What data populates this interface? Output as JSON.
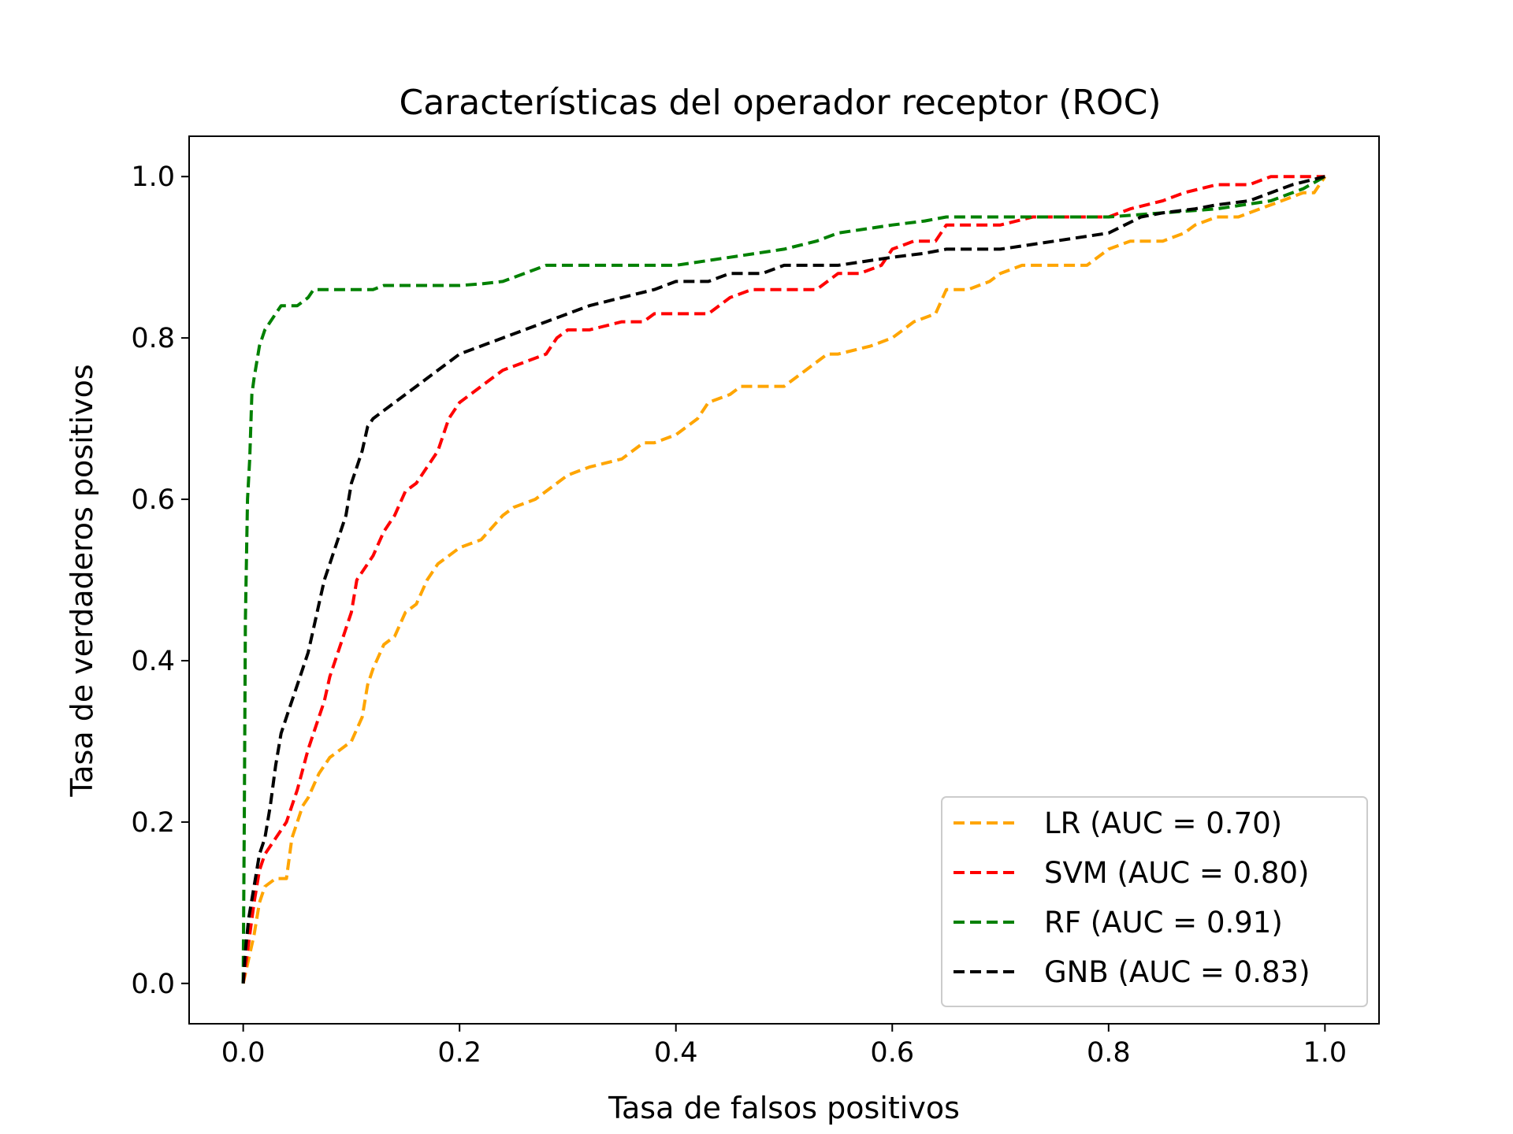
{
  "chart_data": {
    "type": "line",
    "title": "Características del operador receptor (ROC)",
    "xlabel": "Tasa de falsos positivos",
    "ylabel": "Tasa de verdaderos positivos",
    "xlim": [
      -0.05,
      1.05
    ],
    "ylim": [
      -0.05,
      1.05
    ],
    "xticks": [
      0.0,
      0.2,
      0.4,
      0.6,
      0.8,
      1.0
    ],
    "yticks": [
      0.0,
      0.2,
      0.4,
      0.6,
      0.8,
      1.0
    ],
    "xtick_labels": [
      "0.0",
      "0.2",
      "0.4",
      "0.6",
      "0.8",
      "1.0"
    ],
    "ytick_labels": [
      "0.0",
      "0.2",
      "0.4",
      "0.6",
      "0.8",
      "1.0"
    ],
    "grid": false,
    "legend_position": "lower-right",
    "line_style": "dashed",
    "series": [
      {
        "name": "LR (AUC = 0.70)",
        "color": "#ffa500",
        "x": [
          0.0,
          0.005,
          0.01,
          0.015,
          0.02,
          0.03,
          0.04,
          0.045,
          0.05,
          0.055,
          0.06,
          0.07,
          0.08,
          0.09,
          0.1,
          0.11,
          0.115,
          0.12,
          0.13,
          0.14,
          0.15,
          0.16,
          0.17,
          0.18,
          0.19,
          0.2,
          0.22,
          0.24,
          0.25,
          0.27,
          0.29,
          0.3,
          0.32,
          0.35,
          0.37,
          0.38,
          0.4,
          0.42,
          0.43,
          0.45,
          0.46,
          0.48,
          0.5,
          0.52,
          0.54,
          0.55,
          0.58,
          0.6,
          0.62,
          0.64,
          0.65,
          0.67,
          0.69,
          0.7,
          0.72,
          0.75,
          0.78,
          0.8,
          0.82,
          0.85,
          0.87,
          0.88,
          0.9,
          0.92,
          0.94,
          0.96,
          0.98,
          0.99,
          1.0
        ],
        "y": [
          0.0,
          0.03,
          0.06,
          0.1,
          0.12,
          0.13,
          0.13,
          0.18,
          0.2,
          0.22,
          0.23,
          0.26,
          0.28,
          0.29,
          0.3,
          0.33,
          0.37,
          0.39,
          0.42,
          0.43,
          0.46,
          0.47,
          0.5,
          0.52,
          0.53,
          0.54,
          0.55,
          0.58,
          0.59,
          0.6,
          0.62,
          0.63,
          0.64,
          0.65,
          0.67,
          0.67,
          0.68,
          0.7,
          0.72,
          0.73,
          0.74,
          0.74,
          0.74,
          0.76,
          0.78,
          0.78,
          0.79,
          0.8,
          0.82,
          0.83,
          0.86,
          0.86,
          0.87,
          0.88,
          0.89,
          0.89,
          0.89,
          0.91,
          0.92,
          0.92,
          0.93,
          0.94,
          0.95,
          0.95,
          0.96,
          0.97,
          0.98,
          0.98,
          1.0
        ]
      },
      {
        "name": "SVM (AUC = 0.80)",
        "color": "#ff0000",
        "x": [
          0.0,
          0.005,
          0.01,
          0.015,
          0.02,
          0.03,
          0.04,
          0.05,
          0.06,
          0.07,
          0.075,
          0.08,
          0.09,
          0.1,
          0.105,
          0.11,
          0.12,
          0.13,
          0.14,
          0.15,
          0.16,
          0.17,
          0.18,
          0.19,
          0.2,
          0.22,
          0.24,
          0.26,
          0.28,
          0.29,
          0.3,
          0.32,
          0.35,
          0.37,
          0.38,
          0.4,
          0.43,
          0.45,
          0.47,
          0.5,
          0.53,
          0.55,
          0.57,
          0.59,
          0.6,
          0.62,
          0.64,
          0.65,
          0.67,
          0.7,
          0.73,
          0.75,
          0.77,
          0.8,
          0.82,
          0.85,
          0.87,
          0.9,
          0.93,
          0.95,
          0.97,
          0.99,
          1.0
        ],
        "y": [
          0.0,
          0.05,
          0.1,
          0.14,
          0.16,
          0.18,
          0.2,
          0.24,
          0.29,
          0.33,
          0.35,
          0.38,
          0.42,
          0.46,
          0.5,
          0.51,
          0.53,
          0.56,
          0.58,
          0.61,
          0.62,
          0.64,
          0.66,
          0.7,
          0.72,
          0.74,
          0.76,
          0.77,
          0.78,
          0.8,
          0.81,
          0.81,
          0.82,
          0.82,
          0.83,
          0.83,
          0.83,
          0.85,
          0.86,
          0.86,
          0.86,
          0.88,
          0.88,
          0.89,
          0.91,
          0.92,
          0.92,
          0.94,
          0.94,
          0.94,
          0.95,
          0.95,
          0.95,
          0.95,
          0.96,
          0.97,
          0.98,
          0.99,
          0.99,
          1.0,
          1.0,
          1.0,
          1.0
        ]
      },
      {
        "name": "RF (AUC = 0.91)",
        "color": "#008000",
        "x": [
          0.0,
          0.001,
          0.002,
          0.004,
          0.006,
          0.008,
          0.01,
          0.015,
          0.02,
          0.025,
          0.03,
          0.035,
          0.04,
          0.045,
          0.05,
          0.06,
          0.065,
          0.07,
          0.08,
          0.1,
          0.12,
          0.13,
          0.15,
          0.17,
          0.2,
          0.22,
          0.24,
          0.26,
          0.28,
          0.3,
          0.35,
          0.38,
          0.4,
          0.45,
          0.5,
          0.53,
          0.55,
          0.6,
          0.63,
          0.65,
          0.7,
          0.75,
          0.8,
          0.85,
          0.9,
          0.95,
          0.98,
          1.0
        ],
        "y": [
          0.0,
          0.2,
          0.45,
          0.6,
          0.65,
          0.73,
          0.75,
          0.79,
          0.81,
          0.82,
          0.83,
          0.84,
          0.84,
          0.84,
          0.84,
          0.85,
          0.86,
          0.86,
          0.86,
          0.86,
          0.86,
          0.865,
          0.865,
          0.865,
          0.865,
          0.867,
          0.87,
          0.88,
          0.89,
          0.89,
          0.89,
          0.89,
          0.89,
          0.9,
          0.91,
          0.92,
          0.93,
          0.94,
          0.945,
          0.95,
          0.95,
          0.95,
          0.95,
          0.955,
          0.96,
          0.97,
          0.985,
          1.0
        ]
      },
      {
        "name": "GNB (AUC = 0.83)",
        "color": "#000000",
        "x": [
          0.0,
          0.002,
          0.005,
          0.01,
          0.015,
          0.02,
          0.025,
          0.03,
          0.035,
          0.04,
          0.045,
          0.05,
          0.06,
          0.065,
          0.07,
          0.075,
          0.08,
          0.085,
          0.09,
          0.095,
          0.1,
          0.105,
          0.11,
          0.115,
          0.12,
          0.13,
          0.14,
          0.15,
          0.16,
          0.17,
          0.18,
          0.19,
          0.2,
          0.22,
          0.24,
          0.26,
          0.28,
          0.3,
          0.32,
          0.35,
          0.38,
          0.4,
          0.43,
          0.45,
          0.48,
          0.5,
          0.55,
          0.6,
          0.63,
          0.65,
          0.7,
          0.75,
          0.8,
          0.83,
          0.85,
          0.88,
          0.9,
          0.93,
          0.95,
          0.97,
          1.0
        ],
        "y": [
          0.0,
          0.04,
          0.08,
          0.12,
          0.16,
          0.18,
          0.22,
          0.27,
          0.31,
          0.33,
          0.35,
          0.37,
          0.41,
          0.44,
          0.47,
          0.5,
          0.52,
          0.54,
          0.56,
          0.58,
          0.62,
          0.64,
          0.66,
          0.69,
          0.7,
          0.71,
          0.72,
          0.73,
          0.74,
          0.75,
          0.76,
          0.77,
          0.78,
          0.79,
          0.8,
          0.81,
          0.82,
          0.83,
          0.84,
          0.85,
          0.86,
          0.87,
          0.87,
          0.88,
          0.88,
          0.89,
          0.89,
          0.9,
          0.905,
          0.91,
          0.91,
          0.92,
          0.93,
          0.95,
          0.955,
          0.96,
          0.965,
          0.97,
          0.98,
          0.99,
          1.0
        ]
      }
    ]
  }
}
